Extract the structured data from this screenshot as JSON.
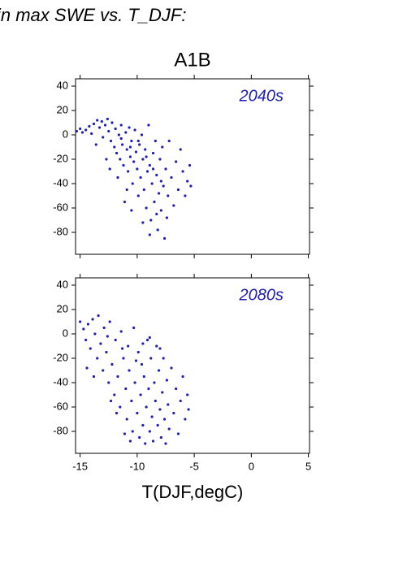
{
  "heading": "in max SWE vs. T_DJF:",
  "chart_data": [
    {
      "type": "scatter",
      "title": "A1B",
      "annotation": "2040s",
      "color": "#2020b4",
      "xlim": [
        -15.4,
        5.1
      ],
      "xticks": [
        -15,
        -10,
        -5,
        0,
        5
      ],
      "ylim": [
        -98,
        46
      ],
      "yticks": [
        40,
        20,
        0,
        -20,
        -40,
        -60,
        -80
      ],
      "x": [
        -15.3,
        -15.0,
        -14.8,
        -14.5,
        -14.2,
        -14.0,
        -13.8,
        -13.5,
        -13.3,
        -13.1,
        -13.0,
        -12.8,
        -12.6,
        -12.5,
        -12.3,
        -12.2,
        -12.0,
        -11.9,
        -11.8,
        -11.6,
        -11.5,
        -11.4,
        -11.3,
        -11.2,
        -11.0,
        -10.9,
        -10.8,
        -10.7,
        -10.6,
        -10.5,
        -10.4,
        -10.3,
        -10.2,
        -10.1,
        -10.0,
        -9.9,
        -9.8,
        -9.7,
        -9.6,
        -9.5,
        -9.4,
        -9.3,
        -9.2,
        -9.1,
        -9.0,
        -8.9,
        -8.8,
        -8.7,
        -8.6,
        -8.5,
        -8.4,
        -8.3,
        -8.2,
        -8.1,
        -8.0,
        -7.9,
        -7.8,
        -7.7,
        -7.6,
        -7.5,
        -7.4,
        -7.3,
        -7.2,
        -7.0,
        -6.8,
        -6.6,
        -6.4,
        -6.2,
        -6.0,
        -5.8,
        -5.6,
        -5.4,
        -5.3,
        -12.7,
        -11.7,
        -10.9,
        -12.4,
        -11.1,
        -10.5,
        -13.6,
        -9.5,
        -8.9,
        -8.3,
        -9.9,
        -10.6,
        -11.4,
        -9.2,
        -8.6,
        -7.9
      ],
      "y": [
        3,
        5,
        2,
        4,
        7,
        1,
        9,
        12,
        6,
        11,
        -2,
        8,
        13,
        3,
        -5,
        10,
        -10,
        5,
        -15,
        0,
        -20,
        8,
        -8,
        -25,
        2,
        -12,
        -30,
        6,
        -18,
        -5,
        -40,
        -22,
        4,
        -14,
        -28,
        -50,
        -8,
        -35,
        0,
        -20,
        -45,
        -12,
        -60,
        -30,
        8,
        -25,
        -70,
        -40,
        -15,
        -55,
        -5,
        -33,
        -78,
        -48,
        -20,
        -62,
        -10,
        -42,
        -85,
        -28,
        -68,
        -50,
        -5,
        -35,
        -58,
        -22,
        -45,
        -12,
        -30,
        -50,
        -38,
        -25,
        -42,
        -20,
        -35,
        -45,
        -28,
        -55,
        -62,
        -8,
        -72,
        -82,
        -65,
        -5,
        -10,
        -3,
        -18,
        -28,
        -38
      ]
    },
    {
      "type": "scatter",
      "annotation": "2080s",
      "color": "#2020b4",
      "xlabel": "T(DJF,degC)",
      "xlim": [
        -15.4,
        5.1
      ],
      "xticks": [
        -15,
        -10,
        -5,
        0,
        5
      ],
      "ylim": [
        -98,
        46
      ],
      "yticks": [
        40,
        20,
        0,
        -20,
        -40,
        -60,
        -80
      ],
      "x": [
        -15.0,
        -14.7,
        -14.5,
        -14.3,
        -14.1,
        -13.9,
        -13.7,
        -13.5,
        -13.4,
        -13.2,
        -13.0,
        -12.9,
        -12.7,
        -12.5,
        -12.4,
        -12.2,
        -12.0,
        -11.9,
        -11.7,
        -11.5,
        -11.4,
        -11.2,
        -11.0,
        -10.9,
        -10.8,
        -10.7,
        -10.5,
        -10.4,
        -10.3,
        -10.2,
        -10.0,
        -9.9,
        -9.8,
        -9.7,
        -9.6,
        -9.5,
        -9.4,
        -9.3,
        -9.2,
        -9.1,
        -9.0,
        -8.9,
        -8.8,
        -8.7,
        -8.6,
        -8.5,
        -8.4,
        -8.3,
        -8.2,
        -8.1,
        -8.0,
        -7.9,
        -7.8,
        -7.7,
        -7.6,
        -7.5,
        -7.4,
        -7.3,
        -7.2,
        -7.0,
        -6.8,
        -6.6,
        -6.4,
        -6.2,
        -6.0,
        -5.8,
        -5.6,
        -5.5,
        -11.8,
        -11.1,
        -10.6,
        -12.3,
        -13.8,
        -14.4,
        -10.1,
        -9.5,
        -8.9,
        -8.0,
        -12.6,
        -11.3
      ],
      "y": [
        10,
        4,
        -5,
        8,
        -12,
        12,
        0,
        -20,
        15,
        -8,
        -30,
        5,
        -15,
        -40,
        10,
        -25,
        -50,
        -5,
        -35,
        -60,
        2,
        -20,
        -45,
        -70,
        -10,
        -30,
        -55,
        -80,
        5,
        -40,
        -65,
        -15,
        -85,
        -50,
        -25,
        -75,
        -35,
        -90,
        -60,
        -5,
        -45,
        -80,
        -20,
        -68,
        -88,
        -40,
        -55,
        -10,
        -75,
        -30,
        -62,
        -85,
        -48,
        -20,
        -70,
        -90,
        -38,
        -58,
        -78,
        -28,
        -65,
        -45,
        -82,
        -55,
        -35,
        -70,
        -50,
        -62,
        -65,
        -82,
        -88,
        -55,
        -35,
        -28,
        -22,
        -8,
        -3,
        -12,
        -2,
        -12
      ]
    }
  ]
}
